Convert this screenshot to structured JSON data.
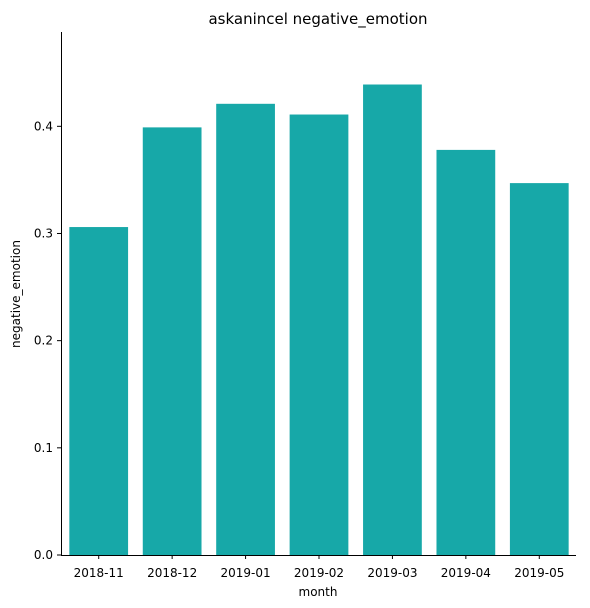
{
  "chart_data": {
    "type": "bar",
    "title": "askanincel negative_emotion",
    "xlabel": "month",
    "ylabel": "negative_emotion",
    "categories": [
      "2018-11",
      "2018-12",
      "2019-01",
      "2019-02",
      "2019-03",
      "2019-04",
      "2019-05"
    ],
    "values": [
      0.306,
      0.399,
      0.421,
      0.411,
      0.439,
      0.378,
      0.347
    ],
    "ylim": [
      0,
      0.488
    ],
    "yticks": [
      "0.0",
      "0.1",
      "0.2",
      "0.3",
      "0.4"
    ],
    "grid": false,
    "legend": "none",
    "bar_color": "#17a8a8"
  }
}
